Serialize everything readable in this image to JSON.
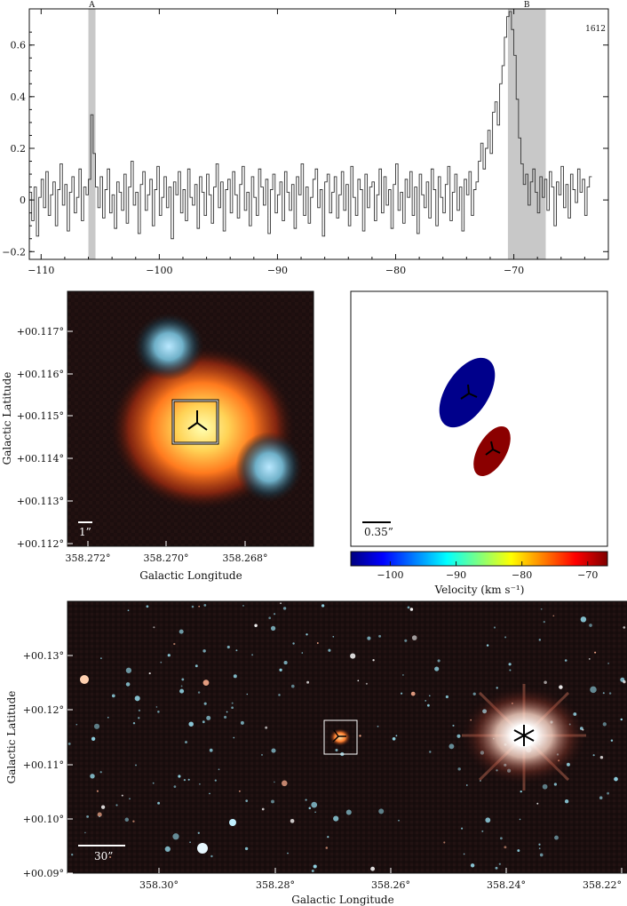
{
  "spectrum": {
    "label": "1612",
    "regions": [
      {
        "name": "A",
        "x0": -106.0,
        "x1": -105.4
      },
      {
        "name": "B",
        "x0": -70.5,
        "x1": -67.3
      }
    ],
    "xlim": [
      -111.0,
      -62.0
    ],
    "ylim": [
      -0.23,
      0.74
    ],
    "xticks": [
      -110,
      -100,
      -90,
      -80,
      -70
    ],
    "yticks": [
      -0.2,
      0,
      0.2,
      0.4,
      0.6
    ],
    "ytick_labels": [
      "−0.2",
      "0",
      "0.2",
      "0.4",
      "0.6"
    ],
    "xtick_labels": [
      "−110",
      "−100",
      "−90",
      "−80",
      "−70"
    ]
  },
  "chart_data": [
    {
      "type": "line",
      "title": "",
      "xlabel": "",
      "ylabel": "",
      "xlim": [
        -111.0,
        -62.0
      ],
      "ylim": [
        -0.23,
        0.74
      ],
      "series": [
        {
          "style": "step",
          "x_start": -111.0,
          "x_step": 0.2,
          "values": [
            0.03,
            -0.08,
            0.05,
            -0.14,
            0.01,
            0.08,
            -0.03,
            0.11,
            -0.06,
            0.02,
            0.07,
            -0.1,
            0.04,
            0.14,
            -0.02,
            0.06,
            -0.12,
            0.03,
            0.09,
            -0.05,
            0.01,
            0.12,
            -0.08,
            0.05,
            0.02,
            0.08,
            0.33,
            0.18,
            0.05,
            -0.03,
            0.09,
            -0.07,
            0.04,
            0.12,
            -0.05,
            0.02,
            -0.11,
            0.07,
            0.03,
            -0.04,
            0.1,
            -0.09,
            0.05,
            0.15,
            -0.02,
            0.03,
            -0.13,
            0.06,
            0.11,
            -0.04,
            0.02,
            0.08,
            -0.1,
            0.04,
            0.13,
            -0.06,
            0.01,
            0.09,
            -0.03,
            0.05,
            -0.15,
            0.07,
            0.02,
            0.11,
            -0.05,
            0.04,
            -0.08,
            0.12,
            0.01,
            -0.02,
            0.06,
            -0.11,
            0.09,
            0.03,
            -0.06,
            0.1,
            0.02,
            -0.09,
            0.05,
            0.14,
            -0.03,
            0.07,
            -0.12,
            0.04,
            0.08,
            -0.05,
            0.11,
            0.02,
            -0.07,
            0.06,
            0.13,
            -0.04,
            0.03,
            -0.1,
            0.09,
            0.01,
            -0.06,
            0.12,
            0.05,
            -0.02,
            0.08,
            -0.13,
            0.04,
            0.1,
            -0.05,
            0.02,
            0.07,
            -0.08,
            0.11,
            0.03,
            -0.04,
            0.06,
            -0.11,
            0.09,
            0.02,
            0.14,
            -0.06,
            0.05,
            -0.09,
            0.01,
            0.08,
            0.12,
            -0.03,
            0.04,
            -0.14,
            0.07,
            0.1,
            -0.05,
            0.03,
            0.09,
            -0.07,
            0.02,
            0.11,
            -0.04,
            0.06,
            -0.1,
            0.13,
            0.01,
            -0.06,
            0.08,
            0.04,
            -0.12,
            0.1,
            -0.03,
            0.05,
            0.07,
            -0.08,
            0.02,
            0.12,
            -0.05,
            0.09,
            -0.02,
            0.04,
            -0.11,
            0.06,
            0.14,
            -0.04,
            0.03,
            -0.09,
            0.08,
            0.01,
            0.11,
            -0.06,
            0.05,
            -0.13,
            0.1,
            0.02,
            -0.03,
            0.07,
            -0.07,
            0.12,
            0.04,
            -0.1,
            0.09,
            0.01,
            -0.05,
            0.06,
            0.13,
            -0.08,
            0.03,
            0.1,
            -0.04,
            0.05,
            -0.12,
            0.08,
            0.02,
            0.11,
            -0.06,
            0.04,
            0.07,
            0.15,
            0.22,
            0.12,
            0.2,
            0.27,
            0.18,
            0.34,
            0.38,
            0.29,
            0.45,
            0.52,
            0.63,
            0.71,
            0.73,
            0.66,
            0.56,
            0.39,
            0.24,
            0.14,
            0.06,
            0.1,
            -0.02,
            0.07,
            0.12,
            0.03,
            -0.05,
            0.09,
            0.01,
            0.08,
            -0.04,
            0.11,
            0.05,
            -0.1,
            0.07,
            0.02,
            0.13,
            -0.03,
            0.06,
            -0.07,
            0.1,
            0.04,
            -0.01,
            0.12,
            0.03,
            0.08,
            -0.06,
            0.05,
            0.09
          ]
        }
      ]
    },
    {
      "type": "scatter",
      "xlabel": "Velocity (km s⁻¹)",
      "colorbar": {
        "range": [
          -106,
          -67
        ],
        "ticks": [
          -100,
          -90,
          -80,
          -70
        ],
        "tick_labels": [
          "−100",
          "−90",
          "−80",
          "−70"
        ]
      },
      "points": [
        {
          "region": "A",
          "velocity": -105.7,
          "color": "#00008b"
        },
        {
          "region": "B",
          "velocity": -68.0,
          "color": "#8b0000"
        }
      ],
      "scale_bar_label": "0.35”"
    }
  ],
  "left_panel": {
    "ylabel": "Galactic Latitude",
    "xlabel": "Galactic Longitude",
    "xtick_labels": [
      "358.272°",
      "358.270°",
      "358.268°"
    ],
    "ytick_labels": [
      "+00.117°",
      "+00.116°",
      "+00.115°",
      "+00.114°",
      "+00.113°",
      "+00.112°"
    ],
    "scale_bar_label": "1”"
  },
  "bottom_panel": {
    "ylabel": "Galactic Latitude",
    "xlabel": "Galactic Longitude",
    "xtick_labels": [
      "358.30°",
      "358.28°",
      "358.26°",
      "358.24°",
      "358.22°"
    ],
    "ytick_labels": [
      "+00.13°",
      "+00.12°",
      "+00.11°",
      "+00.10°",
      "+00.09°"
    ],
    "scale_bar_label": "30”"
  },
  "colors": {
    "region_shade": "#c8c8c8",
    "spectrum_line": "#333333",
    "image_bg": "#1a0f0f",
    "blob_blue": "#00008b",
    "blob_red": "#8b0000"
  }
}
